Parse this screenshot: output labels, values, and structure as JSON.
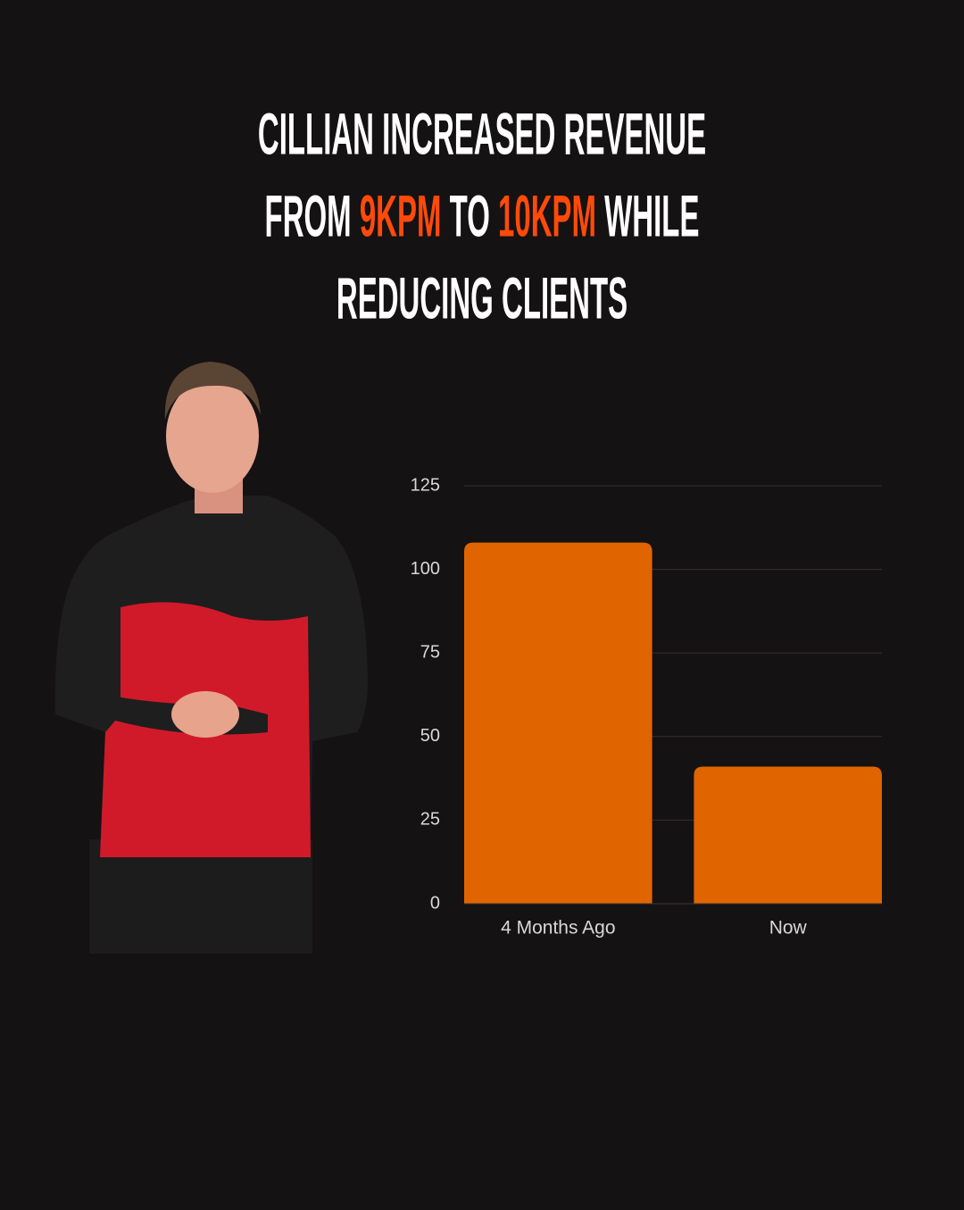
{
  "chart_data": {
    "type": "bar",
    "title_lines": [
      [
        {
          "text": "CILLIAN INCREASED REVENUE"
        }
      ],
      [
        {
          "text": "FROM "
        },
        {
          "text": "9KPM",
          "highlight": true
        },
        {
          "text": " TO "
        },
        {
          "text": "10KPM",
          "highlight": true
        },
        {
          "text": " WHILE"
        }
      ],
      [
        {
          "text": "REDUCING CLIENTS"
        }
      ]
    ],
    "text_color": "#ffffff",
    "highlight_color": "#ff4a0a",
    "categories": [
      "4 Months Ago",
      "Now"
    ],
    "values": [
      108,
      41
    ],
    "color": "#e06500",
    "ylim": [
      0,
      125
    ],
    "yticks": [
      0,
      25,
      50,
      75,
      100,
      125
    ],
    "grid": true
  }
}
